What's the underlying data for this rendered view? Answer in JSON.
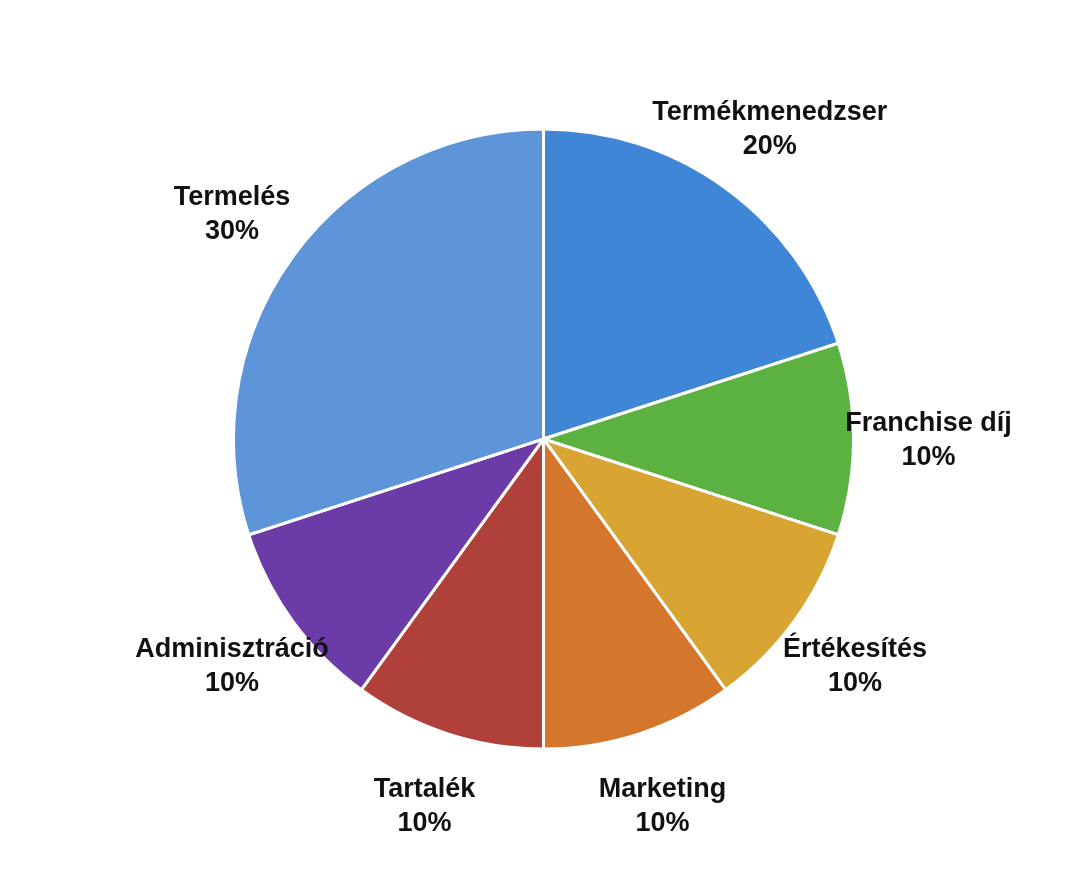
{
  "chart_data": {
    "type": "pie",
    "categories": [
      "Termékmenedzser",
      "Franchise díj",
      "Értékesítés",
      "Marketing",
      "Tartalék",
      "Adminisztráció",
      "Termelés"
    ],
    "values": [
      20,
      10,
      10,
      10,
      10,
      10,
      30
    ],
    "colors": [
      "#3f86d6",
      "#5cb240",
      "#d8a432",
      "#d4772c",
      "#b0403a",
      "#6b3ba8",
      "#5d95d8"
    ],
    "value_labels": [
      "20%",
      "10%",
      "10%",
      "10%",
      "10%",
      "10%",
      "30%"
    ]
  }
}
